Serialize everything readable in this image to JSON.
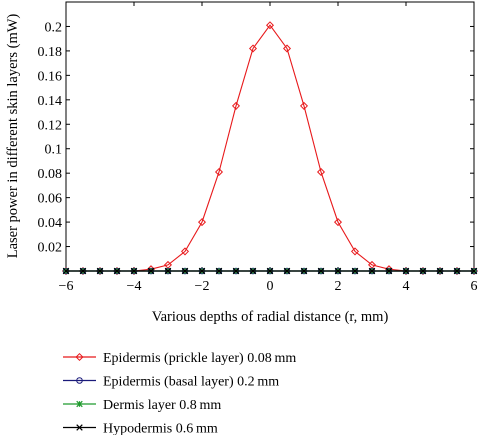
{
  "chart_data": {
    "type": "line",
    "xlabel": "Various depths of radial distance (r, mm)",
    "ylabel": "Laser power in different skin layers (mW)",
    "xlim": [
      -6,
      6
    ],
    "ylim": [
      0,
      0.22
    ],
    "xticks": [
      -6,
      -4,
      -2,
      0,
      2,
      4,
      6
    ],
    "xtick_labels": [
      "−6",
      "−4",
      "−2",
      "0",
      "2",
      "4",
      "6"
    ],
    "yticks": [
      0.02,
      0.04,
      0.06,
      0.08,
      0.1,
      0.12,
      0.14,
      0.16,
      0.18,
      0.2
    ],
    "ytick_labels": [
      "0.02",
      "0.04",
      "0.06",
      "0.08",
      "0.1",
      "0.12",
      "0.14",
      "0.16",
      "0.18",
      "0.2"
    ],
    "grid": false,
    "legend_position": "below",
    "x": [
      -6,
      -5.5,
      -5,
      -4.5,
      -4,
      -3.5,
      -3,
      -2.5,
      -2,
      -1.5,
      -1,
      -0.5,
      0,
      0.5,
      1,
      1.5,
      2,
      2.5,
      3,
      3.5,
      4,
      4.5,
      5,
      5.5,
      6
    ],
    "series": [
      {
        "name": "Epidermis (prickle layer) 0.08 mm",
        "color": "#e8191b",
        "marker": "diamond",
        "values": [
          0,
          0,
          0,
          0,
          0,
          0.0015,
          0.005,
          0.016,
          0.04,
          0.081,
          0.135,
          0.182,
          0.201,
          0.182,
          0.135,
          0.081,
          0.04,
          0.016,
          0.005,
          0.0015,
          0,
          0,
          0,
          0,
          0
        ]
      },
      {
        "name": "Epidermis (basal layer) 0.2 mm",
        "color": "#1a1a7a",
        "marker": "circle",
        "values": [
          0,
          0,
          0,
          0,
          0,
          0,
          0,
          0,
          0,
          0,
          0,
          0,
          0,
          0,
          0,
          0,
          0,
          0,
          0,
          0,
          0,
          0,
          0,
          0,
          0
        ]
      },
      {
        "name": "Dermis layer 0.8 mm",
        "color": "#1f9a2e",
        "marker": "star",
        "values": [
          0,
          0,
          0,
          0,
          0,
          0,
          0,
          0,
          0,
          0,
          0,
          0,
          0,
          0,
          0,
          0,
          0,
          0,
          0,
          0,
          0,
          0,
          0,
          0,
          0
        ]
      },
      {
        "name": "Hypodermis 0.6 mm",
        "color": "#000000",
        "marker": "x",
        "values": [
          0,
          0,
          0,
          0,
          0,
          0,
          0,
          0,
          0,
          0,
          0,
          0,
          0,
          0,
          0,
          0,
          0,
          0,
          0,
          0,
          0,
          0,
          0,
          0,
          0
        ]
      }
    ]
  }
}
